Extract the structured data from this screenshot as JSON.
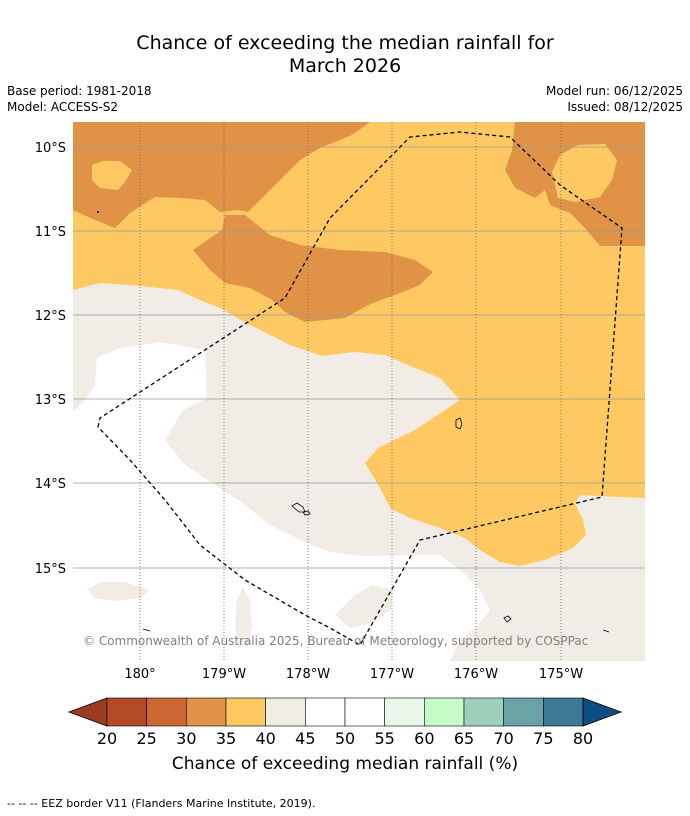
{
  "title_line1": "Chance of exceeding the median rainfall for",
  "title_line2": "March 2026",
  "base_period": "Base period: 1981-2018",
  "model": "Model: ACCESS-S2",
  "model_run": "Model run: 06/12/2025",
  "issued": "Issued: 08/12/2025",
  "copyright": "© Commonwealth of Australia 2025, Bureau of Meteorology, supported by COSPPac",
  "lat_labels": [
    "10°S",
    "11°S",
    "12°S",
    "13°S",
    "14°S",
    "15°S"
  ],
  "lon_labels": [
    "180°",
    "179°W",
    "178°W",
    "177°W",
    "176°W",
    "175°W"
  ],
  "colorbar": {
    "ticks": [
      "20",
      "25",
      "30",
      "35",
      "40",
      "45",
      "50",
      "55",
      "60",
      "65",
      "70",
      "75",
      "80"
    ],
    "colors": [
      "#b44b28",
      "#cc6633",
      "#e09346",
      "#fec963",
      "#f1ece6",
      "#ffffff",
      "#ffffff",
      "#ebf6ea",
      "#c6fcc7",
      "#9dcfb9",
      "#6ba2a6",
      "#3d7896"
    ],
    "under_color": "#9c3c22",
    "over_color": "#0f4c81",
    "label": "Chance of exceeding median rainfall (%)"
  },
  "footnote": "--  --  -- EEZ border V11 (Flanders Marine Institute, 2019)."
}
